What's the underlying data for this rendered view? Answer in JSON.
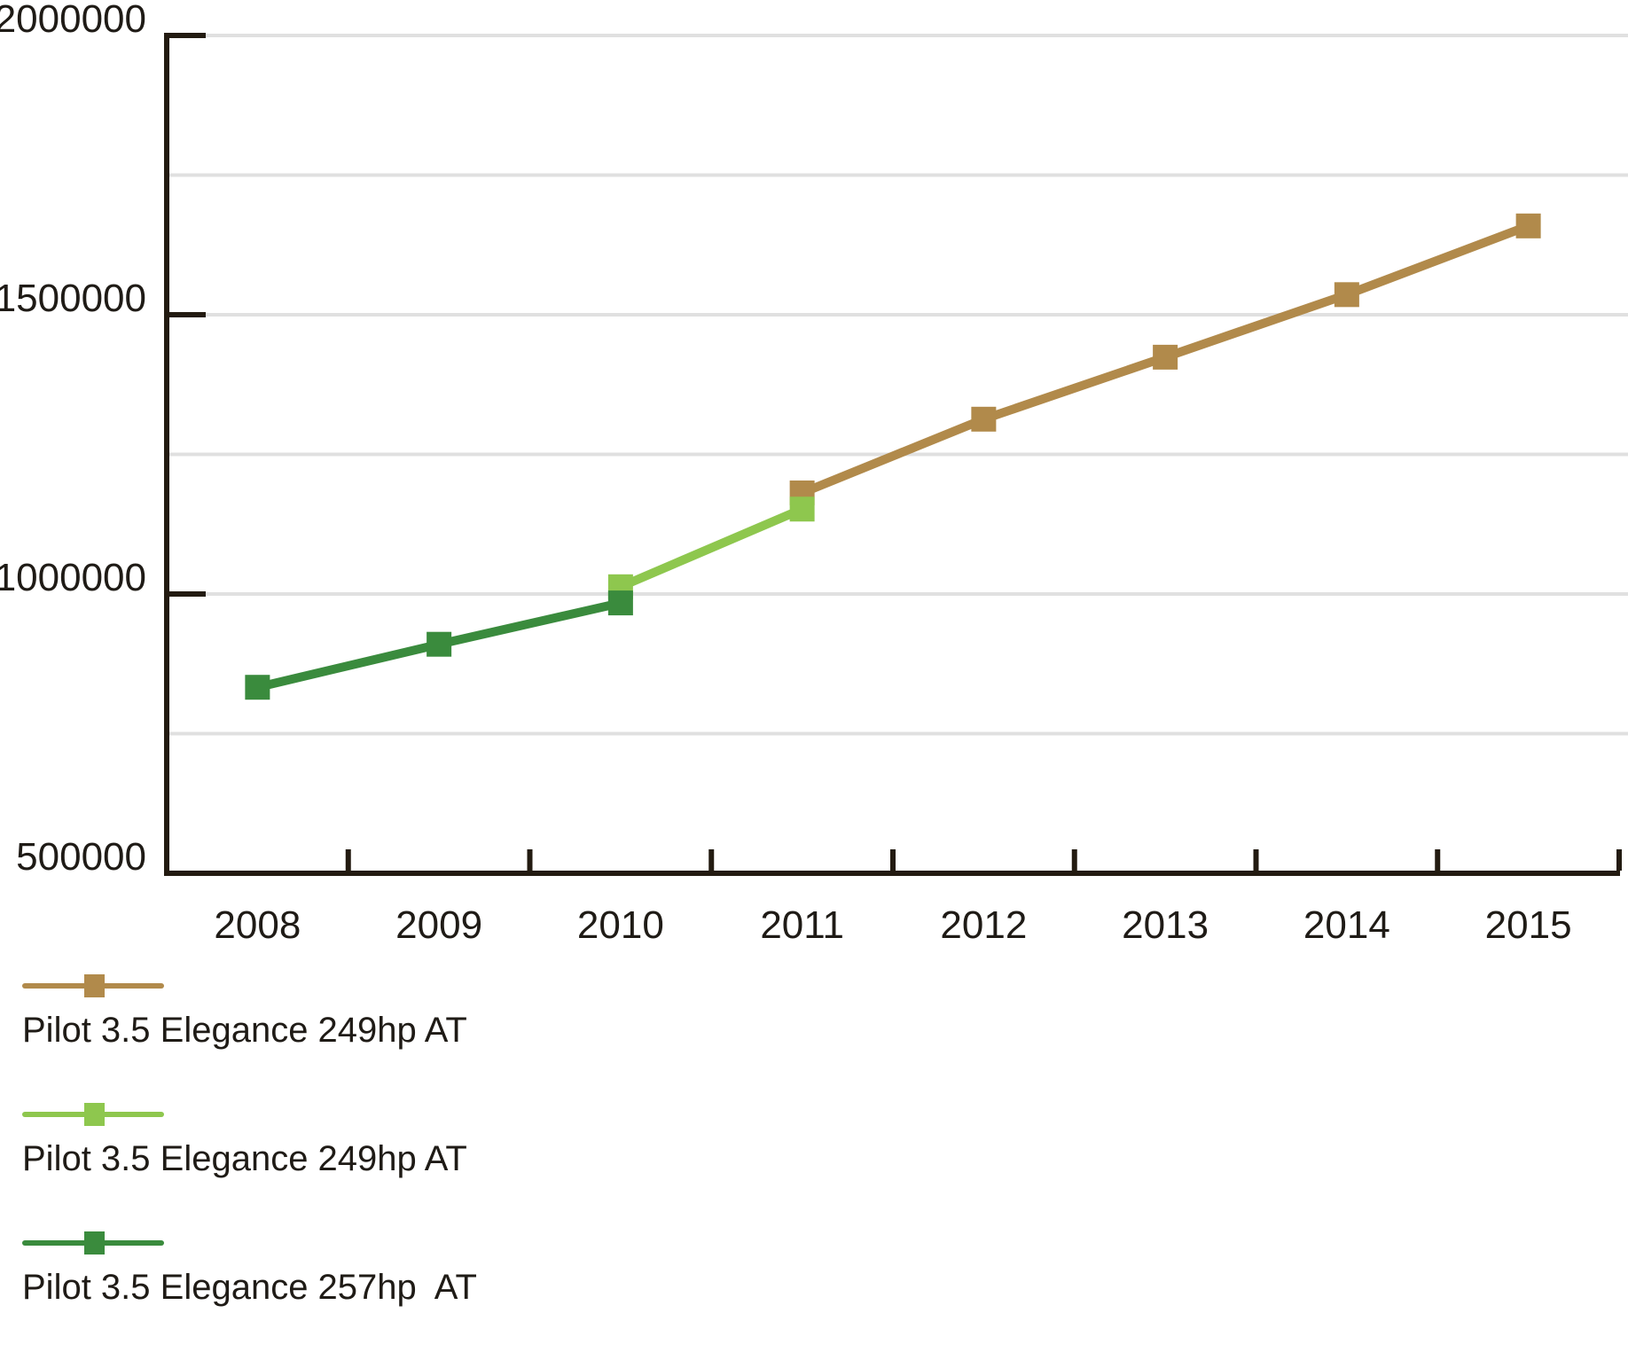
{
  "chart_data": {
    "type": "line",
    "title": "",
    "xlabel": "",
    "ylabel": "",
    "x_categories": [
      "2008",
      "2009",
      "2010",
      "2011",
      "2012",
      "2013",
      "2014",
      "2015"
    ],
    "ylim": [
      500000,
      2000000
    ],
    "yticks": [
      500000,
      1000000,
      1500000,
      2000000
    ],
    "ytick_labels": [
      "500000",
      "1000000",
      "1500000",
      "2000000"
    ],
    "grid_values": [
      750000,
      1000000,
      1250000,
      1500000,
      1750000,
      2000000
    ],
    "grid": "on",
    "legend_position": "bottom-left",
    "axis_color": "#231b11",
    "grid_color": "#e0e0e0",
    "text_color": "#1f1b16",
    "series": [
      {
        "name": "Pilot 3.5 Elegance 249hp AT",
        "color": "#b18a4b",
        "points": [
          [
            "2011",
            1181000
          ],
          [
            "2012",
            1313000
          ],
          [
            "2013",
            1424000
          ],
          [
            "2014",
            1536000
          ],
          [
            "2015",
            1659000
          ]
        ]
      },
      {
        "name": "Pilot 3.5 Elegance 249hp AT",
        "color": "#8ec74e",
        "points": [
          [
            "2010",
            1013000
          ],
          [
            "2011",
            1152000
          ]
        ]
      },
      {
        "name": "Pilot 3.5 Elegance 257hp  AT",
        "color": "#3a8b3d",
        "points": [
          [
            "2008",
            833000
          ],
          [
            "2009",
            910000
          ],
          [
            "2010",
            984000
          ]
        ]
      }
    ]
  }
}
